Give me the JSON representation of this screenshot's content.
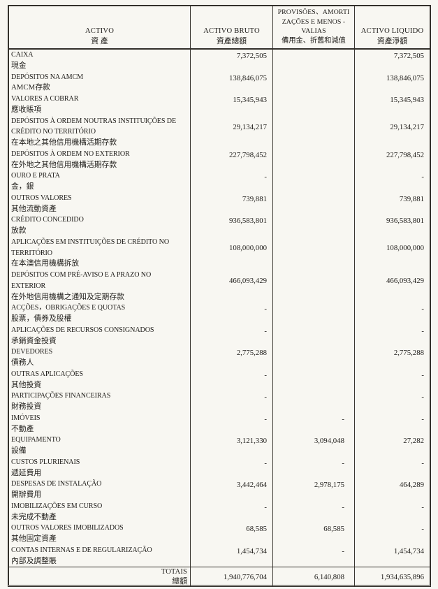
{
  "table": {
    "columns": [
      {
        "pt": "ACTIVO",
        "zh": "資 產"
      },
      {
        "pt": "ACTIVO BRUTO",
        "zh": "資產總額"
      },
      {
        "lines": [
          "PROVISÕES、AMORTI",
          "ZAÇÕES E MENOS -",
          "VALIAS"
        ],
        "zh": "備用金、折舊和減值"
      },
      {
        "pt": "ACTIVO LIQUIDO",
        "zh": "資產淨額"
      }
    ],
    "rows": [
      {
        "pt": [
          "CAIXA"
        ],
        "zh": "現金",
        "bruto": "7,372,505",
        "prov": "",
        "liq": "7,372,505"
      },
      {
        "pt": [
          "DEPÓSITOS NA AMCM"
        ],
        "zh": "AMCM存款",
        "bruto": "138,846,075",
        "prov": "",
        "liq": "138,846,075"
      },
      {
        "pt": [
          "VALORES A COBRAR"
        ],
        "zh": "應收賬項",
        "bruto": "15,345,943",
        "prov": "",
        "liq": "15,345,943"
      },
      {
        "pt": [
          "DEPÓSITOS À ORDEM NOUTRAS INSTITUIÇÕES DE",
          "CRÉDITO NO TERRITÓRIO"
        ],
        "zh": "在本地之其他信用機構活期存款",
        "bruto": "29,134,217",
        "prov": "",
        "liq": "29,134,217"
      },
      {
        "pt": [
          "DEPÓSITOS À ORDEM NO EXTERIOR"
        ],
        "zh": "在外地之其他信用機構活期存款",
        "bruto": "227,798,452",
        "prov": "",
        "liq": "227,798,452"
      },
      {
        "pt": [
          "OURO E PRATA"
        ],
        "zh": "金，銀",
        "bruto": "-",
        "prov": "",
        "liq": "-"
      },
      {
        "pt": [
          "OUTROS VALORES"
        ],
        "zh": "其他流動資產",
        "bruto": "739,881",
        "prov": "",
        "liq": "739,881"
      },
      {
        "pt": [
          "CRÉDITO CONCEDIDO"
        ],
        "zh": "放款",
        "bruto": "936,583,801",
        "prov": "",
        "liq": "936,583,801"
      },
      {
        "pt": [
          "APLICAÇÕES EM INSTITUIÇÕES DE CRÉDITO NO",
          "TERRITÓRIO"
        ],
        "zh": "在本澳信用機構拆放",
        "bruto": "108,000,000",
        "prov": "",
        "liq": "108,000,000"
      },
      {
        "pt": [
          "DEPÓSITOS COM PRÉ-AVISO E A PRAZO NO",
          "EXTERIOR"
        ],
        "zh": "在外地信用機構之通知及定期存款",
        "bruto": "466,093,429",
        "prov": "",
        "liq": "466,093,429"
      },
      {
        "pt": [
          "ACÇÕES，OBRIGAÇÕES E QUOTAS"
        ],
        "zh": "股票，債券及股權",
        "bruto": "-",
        "prov": "",
        "liq": "-"
      },
      {
        "pt": [
          "APLICAÇÕES DE RECURSOS CONSIGNADOS"
        ],
        "zh": "承銷資金投資",
        "bruto": "-",
        "prov": "",
        "liq": "-"
      },
      {
        "pt": [
          "DEVEDORES"
        ],
        "zh": "債務人",
        "bruto": "2,775,288",
        "prov": "",
        "liq": "2,775,288"
      },
      {
        "pt": [
          "OUTRAS APLICAÇÕES"
        ],
        "zh": "其他投資",
        "bruto": "-",
        "prov": "",
        "liq": "-"
      },
      {
        "pt": [
          "PARTICIPAÇÕES FINANCEIRAS"
        ],
        "zh": "財務投資",
        "bruto": "-",
        "prov": "",
        "liq": "-"
      },
      {
        "pt": [
          "IMÓVEIS"
        ],
        "zh": "不動產",
        "bruto": "-",
        "prov": "-",
        "liq": "-"
      },
      {
        "pt": [
          "EQUIPAMENTO"
        ],
        "zh": "設備",
        "bruto": "3,121,330",
        "prov": "3,094,048",
        "liq": "27,282"
      },
      {
        "pt": [
          "CUSTOS PLURIENAIS"
        ],
        "zh": "遞延費用",
        "bruto": "-",
        "prov": "-",
        "liq": "-"
      },
      {
        "pt": [
          "DESPESAS DE INSTALAÇÃO"
        ],
        "zh": "開辦費用",
        "bruto": "3,442,464",
        "prov": "2,978,175",
        "liq": "464,289"
      },
      {
        "pt": [
          "IMOBILIZAÇÕES EM CURSO"
        ],
        "zh": "未完成不動產",
        "bruto": "-",
        "prov": "-",
        "liq": "-"
      },
      {
        "pt": [
          "OUTROS VALORES IMOBILIZADOS"
        ],
        "zh": "其他固定資產",
        "bruto": "68,585",
        "prov": "68,585",
        "liq": "-"
      },
      {
        "pt": [
          "CONTAS INTERNAS E DE REGULARIZAÇÃO"
        ],
        "zh": "內部及調整賬",
        "bruto": "1,454,734",
        "prov": "-",
        "liq": "1,454,734"
      }
    ],
    "totals": {
      "pt": "TOTAIS",
      "zh": "總額",
      "bruto": "1,940,776,704",
      "prov": "6,140,808",
      "liq": "1,934,635,896"
    }
  }
}
